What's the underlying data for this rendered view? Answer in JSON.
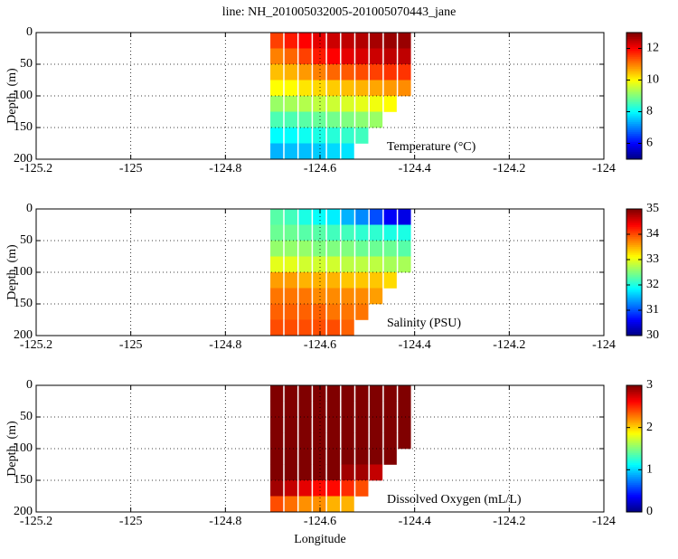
{
  "chart_data": [
    {
      "type": "heatmap",
      "title": "line: NH_201005032005-201005070443_jane",
      "ylabel": "Depth, (m)",
      "annotation": "Temperature (°C)",
      "colormap": "jet",
      "grid": true,
      "x": [
        -124.69,
        -124.66,
        -124.63,
        -124.6,
        -124.57,
        -124.54,
        -124.51,
        -124.48,
        -124.45,
        -124.42
      ],
      "y": [
        0,
        25,
        50,
        75,
        100,
        125,
        150,
        175
      ],
      "z": [
        [
          11.5,
          11.8,
          12,
          12.2,
          12.4,
          12.5,
          12.6,
          12.7,
          12.8,
          12.8
        ],
        [
          11,
          11.2,
          11.5,
          11.8,
          12,
          12.2,
          12.3,
          12.4,
          12.5,
          12.5
        ],
        [
          10.5,
          10.6,
          10.8,
          11,
          11.2,
          11.3,
          11.4,
          11.5,
          11.6,
          11.6
        ],
        [
          10,
          10,
          10.2,
          10.3,
          10.4,
          10.5,
          10.6,
          10.7,
          10.8,
          10.9
        ],
        [
          9.2,
          9.3,
          9.4,
          9.5,
          9.6,
          9.7,
          9.8,
          9.9,
          10,
          null
        ],
        [
          8.6,
          8.6,
          8.7,
          8.8,
          8.9,
          9,
          9.1,
          9.2,
          null,
          null
        ],
        [
          8,
          8,
          8.1,
          8.2,
          8.3,
          8.4,
          8.5,
          null,
          null,
          null
        ],
        [
          7.4,
          7.5,
          7.5,
          7.6,
          7.7,
          7.8,
          null,
          null,
          null,
          null
        ]
      ],
      "xlim": [
        -125.2,
        -124
      ],
      "xticks": [
        -125.2,
        -125,
        -124.8,
        -124.6,
        -124.4,
        -124.2,
        -124
      ],
      "ylim": [
        200,
        0
      ],
      "yticks": [
        0,
        50,
        100,
        150,
        200
      ],
      "clim": [
        5,
        13
      ],
      "cticks": [
        6,
        8,
        10,
        12
      ]
    },
    {
      "type": "heatmap",
      "ylabel": "Depth, (m)",
      "annotation": "Salinity (PSU)",
      "colormap": "jet",
      "grid": true,
      "x": [
        -124.69,
        -124.66,
        -124.63,
        -124.6,
        -124.57,
        -124.54,
        -124.51,
        -124.48,
        -124.45,
        -124.42
      ],
      "y": [
        0,
        25,
        50,
        75,
        100,
        125,
        150,
        175
      ],
      "z": [
        [
          32.3,
          32.2,
          32,
          31.9,
          31.8,
          31.5,
          31.3,
          31,
          30.6,
          30.5
        ],
        [
          32.4,
          32.4,
          32.3,
          32.3,
          32.2,
          32.2,
          32.1,
          32.1,
          32,
          32
        ],
        [
          32.6,
          32.6,
          32.6,
          32.5,
          32.5,
          32.5,
          32.4,
          32.4,
          32.4,
          32.3
        ],
        [
          33,
          33,
          32.9,
          32.9,
          32.9,
          32.8,
          32.8,
          32.8,
          32.7,
          32.7
        ],
        [
          33.6,
          33.6,
          33.5,
          33.5,
          33.5,
          33.4,
          33.4,
          33.4,
          33.3,
          null
        ],
        [
          33.8,
          33.8,
          33.8,
          33.7,
          33.7,
          33.7,
          33.7,
          33.6,
          null,
          null
        ],
        [
          33.9,
          33.9,
          33.9,
          33.9,
          33.8,
          33.8,
          33.8,
          null,
          null,
          null
        ],
        [
          34,
          34,
          34,
          34,
          34,
          33.9,
          null,
          null,
          null,
          null
        ]
      ],
      "xlim": [
        -125.2,
        -124
      ],
      "xticks": [
        -125.2,
        -125,
        -124.8,
        -124.6,
        -124.4,
        -124.2,
        -124
      ],
      "ylim": [
        200,
        0
      ],
      "yticks": [
        0,
        50,
        100,
        150,
        200
      ],
      "clim": [
        30,
        35
      ],
      "cticks": [
        30,
        31,
        32,
        33,
        34,
        35
      ]
    },
    {
      "type": "heatmap",
      "ylabel": "Depth, (m)",
      "xlabel": "Longitude",
      "annotation": "Dissolved Oxygen (mL/L)",
      "colormap": "jet",
      "grid": true,
      "x": [
        -124.69,
        -124.66,
        -124.63,
        -124.6,
        -124.57,
        -124.54,
        -124.51,
        -124.48,
        -124.45,
        -124.42
      ],
      "y": [
        0,
        25,
        50,
        75,
        100,
        125,
        150,
        175
      ],
      "z": [
        [
          3,
          3,
          3,
          3,
          3,
          3,
          3,
          3,
          3,
          3
        ],
        [
          3,
          3,
          3,
          3,
          3,
          3,
          3,
          3,
          3,
          3
        ],
        [
          3,
          3,
          3,
          3,
          3,
          3,
          3,
          3,
          3,
          3
        ],
        [
          3,
          3,
          3,
          3,
          3,
          3,
          3,
          3,
          3,
          3
        ],
        [
          3,
          3,
          3,
          3,
          3,
          3,
          3,
          3,
          3,
          null
        ],
        [
          3,
          3,
          3,
          3,
          3,
          2.9,
          2.9,
          2.8,
          null,
          null
        ],
        [
          2.9,
          2.8,
          2.7,
          2.6,
          2.6,
          2.5,
          2.4,
          null,
          null,
          null
        ],
        [
          2.4,
          2.3,
          2.2,
          2.2,
          2.1,
          2.1,
          null,
          null,
          null,
          null
        ]
      ],
      "xlim": [
        -125.2,
        -124
      ],
      "xticks": [
        -125.2,
        -125,
        -124.8,
        -124.6,
        -124.4,
        -124.2,
        -124
      ],
      "ylim": [
        200,
        0
      ],
      "yticks": [
        0,
        50,
        100,
        150,
        200
      ],
      "clim": [
        0,
        3
      ],
      "cticks": [
        0,
        1,
        2,
        3
      ]
    }
  ]
}
